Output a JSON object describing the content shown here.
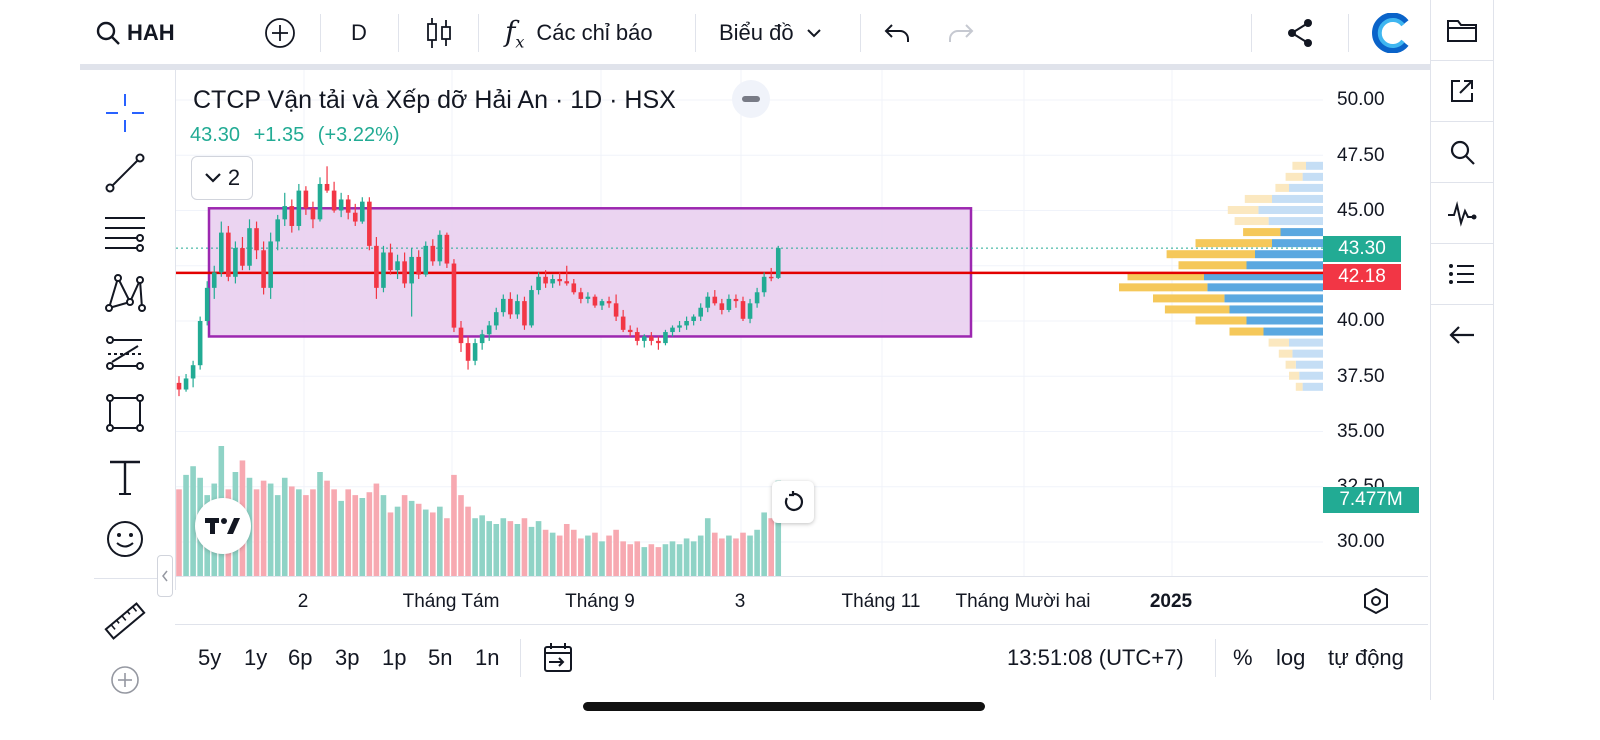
{
  "toolbar": {
    "symbol": "HAH",
    "interval": "D",
    "indicators_label": "Các chỉ báo",
    "chart_type_label": "Biểu đồ",
    "icons": [
      "search-icon",
      "add-symbol-icon",
      "candles-icon",
      "fx-icon",
      "chevron-down-icon",
      "undo-icon",
      "redo-icon",
      "share-icon",
      "brand-logo",
      "folder-icon"
    ]
  },
  "legend": {
    "title": "CTCP Vận tải và Xếp dỡ Hải An · 1D · HSX",
    "last": "43.30",
    "change": "+1.35",
    "change_pct": "(+3.22%)",
    "indicator_count": "2"
  },
  "price_axis": {
    "labels": [
      "50.00",
      "47.50",
      "45.00",
      "43.30",
      "42.18",
      "40.00",
      "37.50",
      "35.00",
      "32.50",
      "7.477M",
      "30.00"
    ],
    "last_price_tag": "43.30",
    "line_price_tag": "42.18",
    "volume_tag": "7.477M"
  },
  "time_axis": {
    "labels": [
      "2",
      "Tháng Tám",
      "Tháng 9",
      "3",
      "Tháng 11",
      "Tháng Mười hai",
      "2025"
    ]
  },
  "bottom": {
    "ranges": [
      "5y",
      "1y",
      "6p",
      "3p",
      "1p",
      "5n",
      "1n"
    ],
    "time": "13:51:08 (UTC+7)",
    "percent": "%",
    "log": "log",
    "auto": "tự động"
  },
  "colors": {
    "up": "#22ab94",
    "down": "#f23645",
    "box_fill": "#e8ccee",
    "box_border": "#9c27b0",
    "hline": "#e30000",
    "vp_up": "#5ba8e0",
    "vp_down": "#f5c85a"
  },
  "chart_data": {
    "type": "candlestick",
    "symbol": "HAH",
    "ylim": [
      28.5,
      51
    ],
    "candles": [
      [
        37.2,
        37.5,
        36.6,
        36.9
      ],
      [
        36.9,
        37.6,
        36.8,
        37.4
      ],
      [
        37.4,
        38.2,
        37.0,
        38.0
      ],
      [
        38.0,
        40.2,
        37.8,
        40.0
      ],
      [
        40.0,
        41.8,
        39.8,
        41.5
      ],
      [
        41.5,
        42.5,
        41.0,
        42.2
      ],
      [
        42.2,
        44.5,
        42.0,
        44.0
      ],
      [
        44.0,
        44.3,
        41.8,
        42.0
      ],
      [
        42.0,
        43.6,
        41.7,
        43.3
      ],
      [
        43.3,
        43.8,
        42.3,
        42.5
      ],
      [
        42.5,
        44.6,
        42.3,
        44.2
      ],
      [
        44.2,
        44.5,
        42.8,
        43.2
      ],
      [
        43.2,
        43.6,
        41.2,
        41.5
      ],
      [
        41.5,
        44.0,
        41.0,
        43.6
      ],
      [
        43.6,
        44.8,
        43.2,
        44.6
      ],
      [
        44.6,
        45.8,
        44.3,
        45.2
      ],
      [
        45.2,
        45.5,
        44.0,
        44.3
      ],
      [
        44.3,
        46.2,
        44.1,
        45.9
      ],
      [
        45.9,
        46.1,
        44.8,
        45.1
      ],
      [
        45.1,
        45.4,
        44.2,
        44.6
      ],
      [
        44.6,
        46.5,
        44.5,
        46.2
      ],
      [
        46.2,
        47.0,
        45.8,
        45.9
      ],
      [
        45.9,
        46.3,
        44.9,
        45.0
      ],
      [
        45.0,
        45.8,
        44.7,
        45.5
      ],
      [
        45.5,
        45.7,
        44.6,
        44.9
      ],
      [
        44.9,
        45.3,
        44.3,
        44.5
      ],
      [
        44.5,
        45.6,
        44.4,
        45.4
      ],
      [
        45.4,
        45.6,
        43.2,
        43.4
      ],
      [
        43.4,
        43.8,
        41.0,
        41.5
      ],
      [
        41.5,
        43.4,
        41.3,
        43.1
      ],
      [
        43.1,
        43.5,
        42.1,
        42.3
      ],
      [
        42.3,
        43.0,
        41.9,
        42.7
      ],
      [
        42.7,
        43.1,
        41.5,
        41.7
      ],
      [
        41.7,
        43.3,
        40.2,
        42.9
      ],
      [
        42.9,
        43.2,
        41.9,
        42.1
      ],
      [
        42.1,
        43.6,
        42.0,
        43.4
      ],
      [
        43.4,
        43.7,
        42.5,
        42.7
      ],
      [
        42.7,
        44.1,
        42.5,
        43.9
      ],
      [
        43.9,
        44.0,
        42.4,
        42.6
      ],
      [
        42.6,
        42.8,
        39.5,
        39.7
      ],
      [
        39.7,
        40.0,
        38.6,
        39.0
      ],
      [
        39.0,
        39.3,
        37.8,
        38.2
      ],
      [
        38.2,
        39.2,
        38.0,
        39.0
      ],
      [
        39.0,
        39.6,
        38.7,
        39.4
      ],
      [
        39.4,
        40.0,
        39.1,
        39.8
      ],
      [
        39.8,
        40.6,
        39.6,
        40.4
      ],
      [
        40.4,
        41.2,
        40.2,
        41.0
      ],
      [
        41.0,
        41.3,
        40.1,
        40.3
      ],
      [
        40.3,
        41.2,
        40.1,
        40.9
      ],
      [
        40.9,
        41.1,
        39.6,
        39.8
      ],
      [
        39.8,
        41.6,
        39.7,
        41.4
      ],
      [
        41.4,
        42.2,
        41.2,
        42.0
      ],
      [
        42.0,
        42.3,
        41.5,
        41.7
      ],
      [
        41.7,
        42.1,
        41.5,
        41.9
      ],
      [
        41.9,
        42.2,
        41.6,
        41.8
      ],
      [
        41.8,
        42.5,
        41.6,
        41.7
      ],
      [
        41.7,
        41.9,
        41.2,
        41.3
      ],
      [
        41.3,
        41.5,
        40.8,
        41.0
      ],
      [
        41.0,
        41.3,
        40.8,
        41.1
      ],
      [
        41.1,
        41.2,
        40.6,
        40.7
      ],
      [
        40.7,
        41.0,
        40.5,
        40.9
      ],
      [
        40.9,
        41.1,
        40.6,
        40.8
      ],
      [
        40.8,
        41.2,
        40.0,
        40.2
      ],
      [
        40.2,
        40.5,
        39.5,
        39.6
      ],
      [
        39.6,
        39.8,
        39.3,
        39.5
      ],
      [
        39.5,
        39.7,
        38.9,
        39.1
      ],
      [
        39.1,
        39.4,
        38.8,
        39.3
      ],
      [
        39.3,
        39.5,
        38.9,
        39.1
      ],
      [
        39.1,
        39.3,
        38.7,
        39.0
      ],
      [
        39.0,
        39.6,
        38.9,
        39.5
      ],
      [
        39.5,
        39.8,
        39.3,
        39.7
      ],
      [
        39.7,
        40.0,
        39.5,
        39.8
      ],
      [
        39.8,
        40.2,
        39.6,
        40.0
      ],
      [
        40.0,
        40.3,
        39.8,
        40.2
      ],
      [
        40.2,
        40.8,
        40.0,
        40.6
      ],
      [
        40.6,
        41.3,
        40.4,
        41.1
      ],
      [
        41.1,
        41.4,
        40.7,
        40.8
      ],
      [
        40.8,
        41.0,
        40.3,
        40.5
      ],
      [
        40.5,
        41.2,
        40.4,
        41.0
      ],
      [
        41.0,
        41.2,
        40.6,
        40.9
      ],
      [
        40.9,
        41.1,
        40.0,
        40.1
      ],
      [
        40.1,
        41.0,
        39.9,
        40.8
      ],
      [
        40.8,
        41.5,
        40.6,
        41.3
      ],
      [
        41.3,
        42.2,
        41.1,
        42.0
      ],
      [
        42.0,
        42.4,
        41.8,
        41.95
      ],
      [
        41.95,
        43.4,
        41.9,
        43.3
      ]
    ],
    "volume": [
      0.3,
      0.35,
      0.38,
      0.34,
      0.28,
      0.32,
      0.45,
      0.3,
      0.36,
      0.4,
      0.34,
      0.3,
      0.33,
      0.32,
      0.28,
      0.34,
      0.31,
      0.3,
      0.28,
      0.3,
      0.36,
      0.33,
      0.3,
      0.26,
      0.3,
      0.28,
      0.27,
      0.29,
      0.32,
      0.28,
      0.22,
      0.24,
      0.28,
      0.26,
      0.25,
      0.23,
      0.22,
      0.24,
      0.2,
      0.35,
      0.28,
      0.24,
      0.2,
      0.21,
      0.19,
      0.18,
      0.2,
      0.19,
      0.18,
      0.2,
      0.17,
      0.19,
      0.16,
      0.15,
      0.14,
      0.18,
      0.16,
      0.13,
      0.14,
      0.15,
      0.12,
      0.14,
      0.16,
      0.12,
      0.11,
      0.12,
      0.1,
      0.11,
      0.1,
      0.11,
      0.12,
      0.11,
      0.13,
      0.12,
      0.14,
      0.2,
      0.15,
      0.13,
      0.14,
      0.13,
      0.15,
      0.14,
      0.16,
      0.22,
      0.2,
      0.33
    ],
    "rectangle": {
      "y_top": 45.1,
      "y_bottom": 39.3
    },
    "horizontal_line": 42.18,
    "volume_profile": [
      {
        "price": 47.0,
        "up": 0.1,
        "down": 0.08
      },
      {
        "price": 46.5,
        "up": 0.12,
        "down": 0.1
      },
      {
        "price": 46.0,
        "up": 0.2,
        "down": 0.08
      },
      {
        "price": 45.5,
        "up": 0.3,
        "down": 0.16
      },
      {
        "price": 45.0,
        "up": 0.38,
        "down": 0.18
      },
      {
        "price": 44.5,
        "up": 0.32,
        "down": 0.2
      },
      {
        "price": 44.0,
        "up": 0.25,
        "down": 0.22
      },
      {
        "price": 43.5,
        "up": 0.3,
        "down": 0.45
      },
      {
        "price": 43.0,
        "up": 0.4,
        "down": 0.52
      },
      {
        "price": 42.5,
        "up": 0.45,
        "down": 0.4
      },
      {
        "price": 42.0,
        "up": 0.7,
        "down": 0.45
      },
      {
        "price": 41.5,
        "up": 0.68,
        "down": 0.52
      },
      {
        "price": 41.0,
        "up": 0.58,
        "down": 0.42
      },
      {
        "price": 40.5,
        "up": 0.55,
        "down": 0.38
      },
      {
        "price": 40.0,
        "up": 0.45,
        "down": 0.3
      },
      {
        "price": 39.5,
        "up": 0.35,
        "down": 0.2
      },
      {
        "price": 39.0,
        "up": 0.2,
        "down": 0.12
      },
      {
        "price": 38.5,
        "up": 0.18,
        "down": 0.08
      },
      {
        "price": 38.0,
        "up": 0.16,
        "down": 0.06
      },
      {
        "price": 37.5,
        "up": 0.14,
        "down": 0.06
      },
      {
        "price": 37.0,
        "up": 0.12,
        "down": 0.04
      }
    ]
  }
}
